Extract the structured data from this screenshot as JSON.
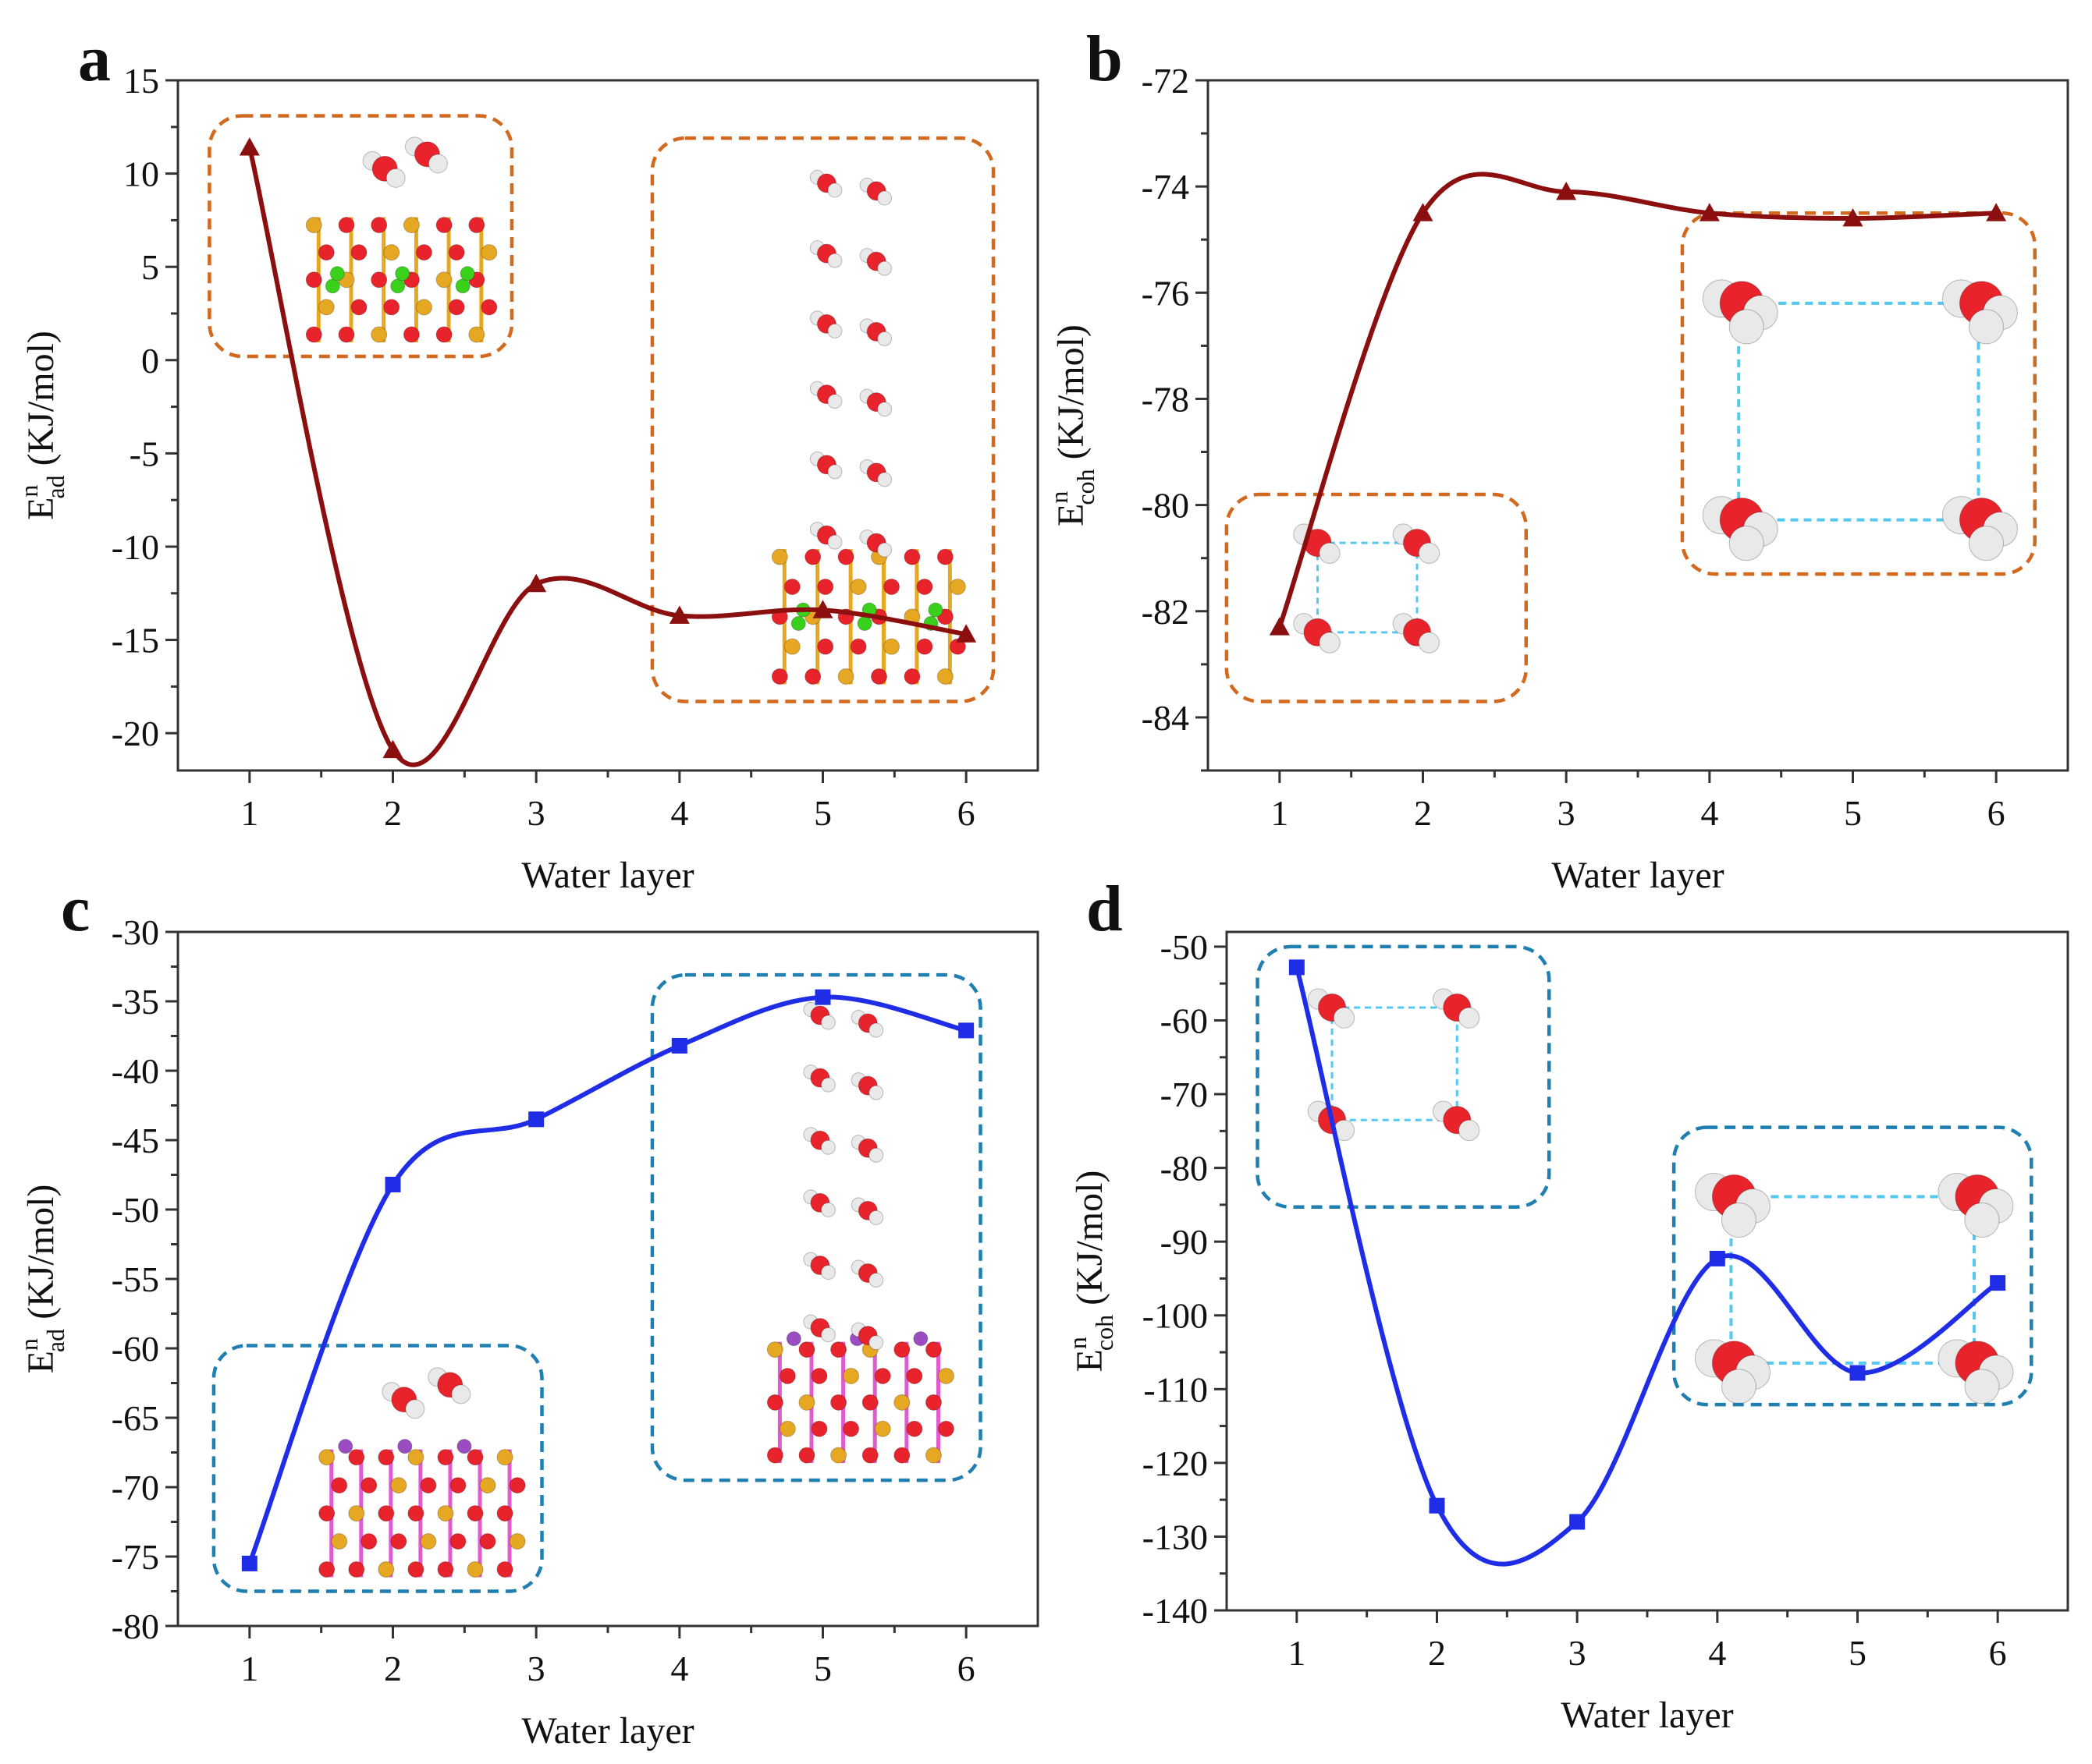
{
  "colors": {
    "series_red": "#8b0f0f",
    "series_blue": "#1f2ee6",
    "inset_orange": "#d2691e",
    "inset_blue": "#1f7fb0",
    "atom_oxygen": "#e8232b",
    "atom_hydrogen": "#e9e9e9",
    "atom_silicon": "#e6a823",
    "atom_chlorine": "#39d11c",
    "atom_lithium": "#9a4cc0",
    "atom_bond_pink": "#e05ad0",
    "hbond": "#56c8f0"
  },
  "chart_data": [
    {
      "id": "a",
      "panel_label": "a",
      "type": "line",
      "marker": "triangle",
      "color": "#8b0f0f",
      "inset_color": "#d2691e",
      "xlabel": "Water layer",
      "ylabel_main": "E",
      "ylabel_sup": "n",
      "ylabel_sub": "ad",
      "ylabel_unit": " (KJ/mol)",
      "xlim": [
        0.5,
        6.5
      ],
      "ylim": [
        -22,
        15
      ],
      "xticks": [
        1,
        2,
        3,
        4,
        5,
        6
      ],
      "yticks": [
        15,
        10,
        5,
        0,
        -5,
        -10,
        -15,
        -20
      ],
      "x": [
        1,
        2,
        3,
        4,
        5,
        6
      ],
      "y": [
        11.4,
        -20.9,
        -12.0,
        -13.7,
        -13.4,
        -14.7
      ],
      "insets": [
        {
          "kind": "slab-short",
          "x0": 0.72,
          "x1": 2.83,
          "y0": 13.1,
          "y1": 0.2
        },
        {
          "kind": "slab-tall",
          "x0": 3.81,
          "x1": 6.19,
          "y0": 11.9,
          "y1": -18.3
        }
      ]
    },
    {
      "id": "b",
      "panel_label": "b",
      "type": "line",
      "marker": "triangle",
      "color": "#8b0f0f",
      "inset_color": "#d2691e",
      "xlabel": "Water layer",
      "ylabel_main": "E",
      "ylabel_sup": "n",
      "ylabel_sub": "coh",
      "ylabel_unit": " (KJ/mol)",
      "xlim": [
        0.5,
        6.5
      ],
      "ylim": [
        -85,
        -72
      ],
      "xticks": [
        1,
        2,
        3,
        4,
        5,
        6
      ],
      "yticks": [
        -72,
        -74,
        -76,
        -78,
        -80,
        -82,
        -84
      ],
      "x": [
        1,
        2,
        3,
        4,
        5,
        6
      ],
      "y": [
        -82.3,
        -74.5,
        -74.1,
        -74.5,
        -74.6,
        -74.5
      ],
      "insets": [
        {
          "kind": "ring",
          "x0": 0.63,
          "x1": 2.72,
          "y0": -79.8,
          "y1": -83.7
        },
        {
          "kind": "ring-big",
          "x0": 3.81,
          "x1": 6.27,
          "y0": -74.5,
          "y1": -81.3
        }
      ]
    },
    {
      "id": "c",
      "panel_label": "c",
      "type": "line",
      "marker": "square",
      "color": "#1f2ee6",
      "inset_color": "#1f7fb0",
      "xlabel": "Water layer",
      "ylabel_main": "E",
      "ylabel_sup": "n",
      "ylabel_sub": "ad",
      "ylabel_unit": " (KJ/mol)",
      "xlim": [
        0.5,
        6.5
      ],
      "ylim": [
        -80,
        -30
      ],
      "xticks": [
        1,
        2,
        3,
        4,
        5,
        6
      ],
      "yticks": [
        -30,
        -35,
        -40,
        -45,
        -50,
        -55,
        -60,
        -65,
        -70,
        -75,
        -80
      ],
      "x": [
        1,
        2,
        3,
        4,
        5,
        6
      ],
      "y": [
        -75.5,
        -48.2,
        -43.5,
        -38.2,
        -34.7,
        -37.1
      ],
      "insets": [
        {
          "kind": "slab-short",
          "x0": 0.75,
          "x1": 3.04,
          "y0": -59.8,
          "y1": -77.5
        },
        {
          "kind": "slab-tall",
          "x0": 3.81,
          "x1": 6.1,
          "y0": -33.1,
          "y1": -69.5
        }
      ]
    },
    {
      "id": "d",
      "panel_label": "d",
      "type": "line",
      "marker": "square",
      "color": "#1f2ee6",
      "inset_color": "#1f7fb0",
      "xlabel": "Water layer",
      "ylabel_main": "E",
      "ylabel_sup": "n",
      "ylabel_sub": "coh",
      "ylabel_unit": " (KJ/mol)",
      "xlim": [
        0.5,
        6.5
      ],
      "ylim": [
        -140,
        -48
      ],
      "xticks": [
        1,
        2,
        3,
        4,
        5,
        6
      ],
      "yticks": [
        -50,
        -60,
        -70,
        -80,
        -90,
        -100,
        -110,
        -120,
        -130,
        -140
      ],
      "x": [
        1,
        2,
        3,
        4,
        5,
        6
      ],
      "y": [
        -52.8,
        -125.8,
        -128.0,
        -92.3,
        -107.8,
        -95.6
      ],
      "insets": [
        {
          "kind": "ring",
          "x0": 0.72,
          "x1": 2.8,
          "y0": -50.0,
          "y1": -85.3
        },
        {
          "kind": "ring-big",
          "x0": 3.69,
          "x1": 6.24,
          "y0": -74.5,
          "y1": -112.1
        }
      ]
    }
  ]
}
